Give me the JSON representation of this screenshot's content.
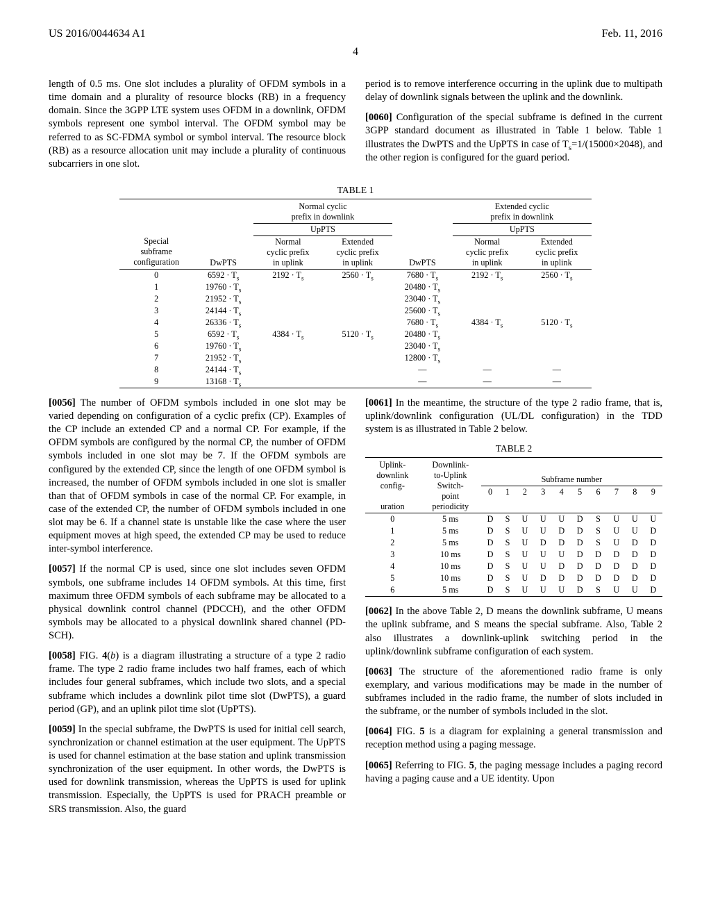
{
  "header": {
    "pub_number": "US 2016/0044634 A1",
    "pub_date": "Feb. 11, 2016",
    "page_number": "4"
  },
  "intro": {
    "p1": "length of 0.5 ms. One slot includes a plurality of OFDM symbols in a time domain and a plurality of resource blocks (RB) in a frequency domain. Since the 3GPP LTE system uses OFDM in a downlink, OFDM symbols represent one symbol interval. The OFDM symbol may be referred to as SC-FDMA symbol or symbol interval. The resource block (RB) as a resource allocation unit may include a plurality of continuous subcarriers in one slot.",
    "p2": "period is to remove interference occurring in the uplink due to multipath delay of downlink signals between the uplink and the downlink.",
    "p0060_label": "[0060]",
    "p0060_body": "   Configuration of the special subframe is defined in the current 3GPP standard document as illustrated in Table 1 below. Table 1 illustrates the DwPTS and the UpPTS in case of T",
    "p0060_tail": "=1/(15000×2048), and the other region is configured for the guard period."
  },
  "table1": {
    "caption": "TABLE 1",
    "hdrs": {
      "col_ssc1": "Special",
      "col_ssc2": "subframe",
      "col_ssc3": "configuration",
      "dwpts": "DwPTS",
      "normal_dl": "Normal cyclic",
      "normal_dl2": "prefix in downlink",
      "ext_dl": "Extended cyclic",
      "ext_dl2": "prefix in downlink",
      "uppts": "UpPTS",
      "n_ul1": "Normal",
      "n_ul2": "cyclic prefix",
      "n_ul3": "in uplink",
      "e_ul1": "Extended",
      "e_ul2": "cyclic prefix",
      "e_ul3": "in uplink"
    },
    "rows": [
      {
        "cfg": "0",
        "dw1": "6592 · T",
        "nu1": "2192 · T",
        "eu1": "2560 · T",
        "dw2": "7680 · T",
        "nu2": "2192 · T",
        "eu2": "2560 · T"
      },
      {
        "cfg": "1",
        "dw1": "19760 · T",
        "nu1": "",
        "eu1": "",
        "dw2": "20480 · T",
        "nu2": "",
        "eu2": ""
      },
      {
        "cfg": "2",
        "dw1": "21952 · T",
        "nu1": "",
        "eu1": "",
        "dw2": "23040 · T",
        "nu2": "",
        "eu2": ""
      },
      {
        "cfg": "3",
        "dw1": "24144 · T",
        "nu1": "",
        "eu1": "",
        "dw2": "25600 · T",
        "nu2": "",
        "eu2": ""
      },
      {
        "cfg": "4",
        "dw1": "26336 · T",
        "nu1": "",
        "eu1": "",
        "dw2": "7680 · T",
        "nu2": "4384 · T",
        "eu2": "5120 · T"
      },
      {
        "cfg": "5",
        "dw1": "6592 · T",
        "nu1": "4384 · T",
        "eu1": "5120 · T",
        "dw2": "20480 · T",
        "nu2": "",
        "eu2": ""
      },
      {
        "cfg": "6",
        "dw1": "19760 · T",
        "nu1": "",
        "eu1": "",
        "dw2": "23040 · T",
        "nu2": "",
        "eu2": ""
      },
      {
        "cfg": "7",
        "dw1": "21952 · T",
        "nu1": "",
        "eu1": "",
        "dw2": "12800 · T",
        "nu2": "",
        "eu2": ""
      },
      {
        "cfg": "8",
        "dw1": "24144 · T",
        "nu1": "",
        "eu1": "",
        "dw2": "—",
        "nu2": "—",
        "eu2": "—"
      },
      {
        "cfg": "9",
        "dw1": "13168 · T",
        "nu1": "",
        "eu1": "",
        "dw2": "—",
        "nu2": "—",
        "eu2": "—"
      }
    ]
  },
  "left_col": {
    "p0056_label": "[0056]",
    "p0056": "   The number of OFDM symbols included in one slot may be varied depending on configuration of a cyclic prefix (CP). Examples of the CP include an extended CP and a normal CP. For example, if the OFDM symbols are configured by the normal CP, the number of OFDM symbols included in one slot may be 7. If the OFDM symbols are configured by the extended CP, since the length of one OFDM symbol is increased, the number of OFDM symbols included in one slot is smaller than that of OFDM symbols in case of the normal CP. For example, in case of the extended CP, the number of OFDM symbols included in one slot may be 6. If a channel state is unstable like the case where the user equipment moves at high speed, the extended CP may be used to reduce inter-symbol interference.",
    "p0057_label": "[0057]",
    "p0057": "   If the normal CP is used, since one slot includes seven OFDM symbols, one subframe includes 14 OFDM symbols. At this time, first maximum three OFDM symbols of each subframe may be allocated to a physical downlink control channel (PDCCH), and the other OFDM symbols may be allocated to a physical downlink shared channel (PD-SCH).",
    "p0058_label": "[0058]",
    "p0058a": "   FIG. ",
    "p0058b": "4",
    "p0058c": "(",
    "p0058d": "b",
    "p0058e": ") is a diagram illustrating a structure of a type 2 radio frame. The type 2 radio frame includes two half frames, each of which includes four general subframes, which include two slots, and a special subframe which includes a downlink pilot time slot (DwPTS), a guard period (GP), and an uplink pilot time slot (UpPTS).",
    "p0059_label": "[0059]",
    "p0059": "   In the special subframe, the DwPTS is used for initial cell search, synchronization or channel estimation at the user equipment. The UpPTS is used for channel estimation at the base station and uplink transmission synchronization of the user equipment. In other words, the DwPTS is used for downlink transmission, whereas the UpPTS is used for uplink transmission. Especially, the UpPTS is used for PRACH preamble or SRS transmission. Also, the guard"
  },
  "right_col": {
    "p0061_label": "[0061]",
    "p0061": "   In the meantime, the structure of the type 2 radio frame, that is, uplink/downlink configuration (UL/DL configuration) in the TDD system is as illustrated in Table 2 below.",
    "p0062_label": "[0062]",
    "p0062": "   In the above Table 2, D means the downlink subframe, U means the uplink subframe, and S means the special subframe. Also, Table 2 also illustrates a downlink-uplink switching period in the uplink/downlink subframe configuration of each system.",
    "p0063_label": "[0063]",
    "p0063": "   The structure of the aforementioned radio frame is only exemplary, and various modifications may be made in the number of subframes included in the radio frame, the number of slots included in the subframe, or the number of symbols included in the slot.",
    "p0064_label": "[0064]",
    "p0064a": "   FIG. ",
    "p0064b": "5",
    "p0064c": " is a diagram for explaining a general transmission and reception method using a paging message.",
    "p0065_label": "[0065]",
    "p0065a": "   Referring to FIG. ",
    "p0065b": "5",
    "p0065c": ", the paging message includes a paging record having a paging cause and a UE identity. Upon"
  },
  "table2": {
    "caption": "TABLE 2",
    "hdr": {
      "c1a": "Uplink-",
      "c1b": "downlink",
      "c1c": "config-",
      "c1d": "uration",
      "c2a": "Downlink-",
      "c2b": "to-Uplink",
      "c2c": "Switch-",
      "c2d": "point",
      "c2e": "periodicity",
      "sf": "Subframe number",
      "n0": "0",
      "n1": "1",
      "n2": "2",
      "n3": "3",
      "n4": "4",
      "n5": "5",
      "n6": "6",
      "n7": "7",
      "n8": "8",
      "n9": "9"
    },
    "rows": [
      {
        "cfg": "0",
        "per": "5 ms",
        "v": [
          "D",
          "S",
          "U",
          "U",
          "U",
          "D",
          "S",
          "U",
          "U",
          "U"
        ]
      },
      {
        "cfg": "1",
        "per": "5 ms",
        "v": [
          "D",
          "S",
          "U",
          "U",
          "D",
          "D",
          "S",
          "U",
          "U",
          "D"
        ]
      },
      {
        "cfg": "2",
        "per": "5 ms",
        "v": [
          "D",
          "S",
          "U",
          "D",
          "D",
          "D",
          "S",
          "U",
          "D",
          "D"
        ]
      },
      {
        "cfg": "3",
        "per": "10 ms",
        "v": [
          "D",
          "S",
          "U",
          "U",
          "U",
          "D",
          "D",
          "D",
          "D",
          "D"
        ]
      },
      {
        "cfg": "4",
        "per": "10 ms",
        "v": [
          "D",
          "S",
          "U",
          "U",
          "D",
          "D",
          "D",
          "D",
          "D",
          "D"
        ]
      },
      {
        "cfg": "5",
        "per": "10 ms",
        "v": [
          "D",
          "S",
          "U",
          "D",
          "D",
          "D",
          "D",
          "D",
          "D",
          "D"
        ]
      },
      {
        "cfg": "6",
        "per": "5 ms",
        "v": [
          "D",
          "S",
          "U",
          "U",
          "U",
          "D",
          "S",
          "U",
          "U",
          "D"
        ]
      }
    ]
  }
}
